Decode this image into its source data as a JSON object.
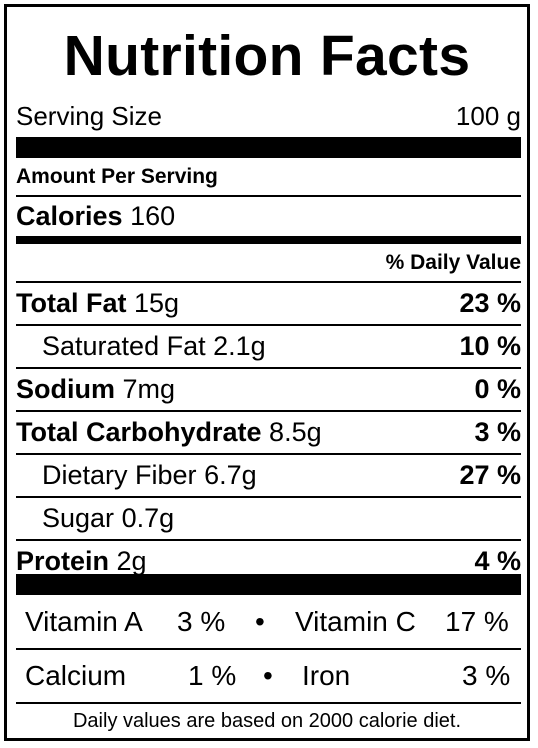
{
  "title": "Nutrition Facts",
  "serving": {
    "label": "Serving Size",
    "value": "100 g"
  },
  "amount_per_serving": "Amount Per Serving",
  "calories": {
    "label": "Calories",
    "value": "160"
  },
  "daily_value_header": "% Daily Value",
  "nutrients": [
    {
      "name": "Total Fat",
      "amount": "15g",
      "dv": "23 %"
    },
    {
      "name": "Saturated Fat",
      "amount": "2.1g",
      "dv": "10 %"
    },
    {
      "name": "Sodium",
      "amount": "7mg",
      "dv": "0 %"
    },
    {
      "name": "Total Carbohydrate",
      "amount": "8.5g",
      "dv": "3 %"
    },
    {
      "name": "Dietary Fiber",
      "amount": "6.7g",
      "dv": "27 %"
    },
    {
      "name": "Sugar",
      "amount": "0.7g",
      "dv": ""
    },
    {
      "name": "Protein",
      "amount": "2g",
      "dv": "4 %"
    }
  ],
  "vitamins": [
    {
      "name": "Vitamin A",
      "value": "3 %"
    },
    {
      "name": "Vitamin C",
      "value": "17 %"
    },
    {
      "name": "Calcium",
      "value": "1 %"
    },
    {
      "name": "Iron",
      "value": "3 %"
    }
  ],
  "separator": "•",
  "footnote": "Daily values are based on 2000 calorie diet."
}
